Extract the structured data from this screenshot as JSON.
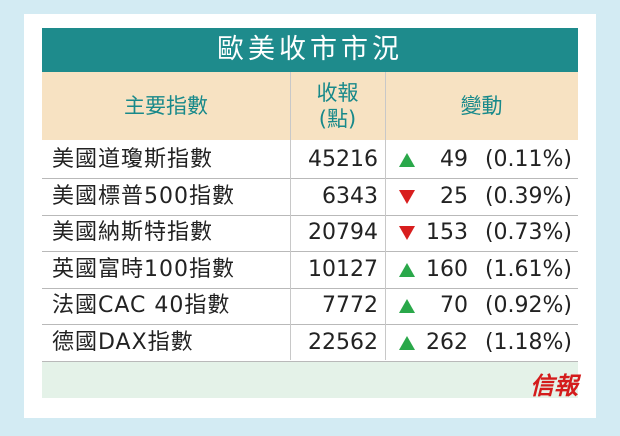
{
  "header": {
    "title": "歐美收市市況"
  },
  "table": {
    "columns": [
      "主要指數",
      [
        "收報",
        "(點)"
      ],
      "變動"
    ],
    "rows": [
      {
        "name": "美國道瓊斯指數",
        "close": 45216,
        "direction": "up",
        "change": 49,
        "percent": "(0.11%)"
      },
      {
        "name": "美國標普500指數",
        "close": 6343,
        "direction": "down",
        "change": 25,
        "percent": "(0.39%)"
      },
      {
        "name": "美國納斯特指數",
        "close": 20794,
        "direction": "down",
        "change": 153,
        "percent": "(0.73%)"
      },
      {
        "name": "英國富時100指數",
        "close": 10127,
        "direction": "up",
        "change": 160,
        "percent": "(1.61%)"
      },
      {
        "name": "法國CAC 40指數",
        "close": 7772,
        "direction": "up",
        "change": 70,
        "percent": "(0.92%)"
      },
      {
        "name": "德國DAX指數",
        "close": 22562,
        "direction": "up",
        "change": 262,
        "percent": "(1.18%)"
      }
    ]
  },
  "footer": {
    "logo": "信報"
  }
}
